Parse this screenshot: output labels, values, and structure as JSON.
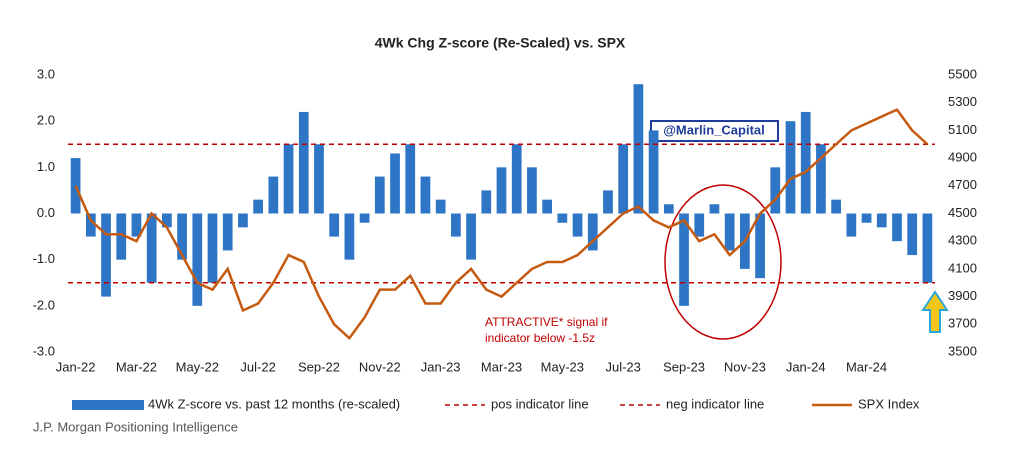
{
  "chart_data": {
    "type": "bar-line",
    "title": "4Wk Chg Z-score (Re-Scaled) vs. SPX",
    "categories": [
      "Jan-22",
      null,
      null,
      null,
      "Mar-22",
      null,
      null,
      null,
      "May-22",
      null,
      null,
      null,
      "Jul-22",
      null,
      null,
      null,
      "Sep-22",
      null,
      null,
      null,
      "Nov-22",
      null,
      null,
      null,
      "Jan-23",
      null,
      null,
      null,
      "Mar-23",
      null,
      null,
      null,
      "May-23",
      null,
      null,
      null,
      "Jul-23",
      null,
      null,
      null,
      "Sep-23",
      null,
      null,
      null,
      "Nov-23",
      null,
      null,
      null,
      "Jan-24",
      null,
      null,
      null,
      "Mar-24",
      null,
      null,
      null,
      null
    ],
    "series": [
      {
        "name": "4Wk Z-score vs. past 12 months (re-scaled)",
        "type": "bar",
        "color": "#2e75c6",
        "values": [
          1.2,
          -0.5,
          -1.8,
          -1.0,
          -0.5,
          -1.5,
          -0.3,
          -1.0,
          -2.0,
          -1.5,
          -0.8,
          -0.3,
          0.3,
          0.8,
          1.5,
          2.2,
          1.5,
          -0.5,
          -1.0,
          -0.2,
          0.8,
          1.3,
          1.5,
          0.8,
          0.3,
          -0.5,
          -1.0,
          0.5,
          1.0,
          1.5,
          1.0,
          0.3,
          -0.2,
          -0.5,
          -0.8,
          0.5,
          1.5,
          2.8,
          1.8,
          0.2,
          -2.0,
          -0.5,
          0.2,
          -0.8,
          -1.2,
          -1.4,
          1.0,
          2.0,
          2.2,
          1.5,
          0.3,
          -0.5,
          -0.2,
          -0.3,
          -0.6,
          -0.9,
          -1.5
        ]
      },
      {
        "name": "SPX Index",
        "type": "line",
        "axis": "y2",
        "color": "#c55a11",
        "values": [
          4700,
          4450,
          4350,
          4350,
          4300,
          4500,
          4400,
          4200,
          4000,
          3950,
          4100,
          3800,
          3850,
          4000,
          4200,
          4150,
          3900,
          3700,
          3600,
          3750,
          3950,
          3950,
          4050,
          3850,
          3850,
          4000,
          4100,
          3950,
          3900,
          4000,
          4100,
          4150,
          4150,
          4200,
          4300,
          4400,
          4500,
          4550,
          4450,
          4400,
          4450,
          4300,
          4350,
          4200,
          4300,
          4500,
          4600,
          4750,
          4800,
          4900,
          5000,
          5100,
          5150,
          5200,
          5250,
          5100,
          5000
        ]
      }
    ],
    "reference_lines": [
      {
        "name": "pos indicator line",
        "color": "#c00000",
        "value": 1.5
      },
      {
        "name": "neg indicator line",
        "color": "#c00000",
        "value": -1.5
      }
    ],
    "ylim": [
      -3,
      3
    ],
    "yticks": [
      {
        "value": -3,
        "label": "-3.0"
      },
      {
        "value": -2,
        "label": "-2.0"
      },
      {
        "value": -1,
        "label": "-1.0"
      },
      {
        "value": 0,
        "label": "0.0"
      },
      {
        "value": 1,
        "label": "1.0"
      },
      {
        "value": 2,
        "label": "2.0"
      },
      {
        "value": 3,
        "label": "3.0"
      }
    ],
    "y2lim": [
      3500,
      5500
    ],
    "y2ticks": [
      3500,
      3700,
      3900,
      4100,
      4300,
      4500,
      4700,
      4900,
      5100,
      5300,
      5500
    ],
    "watermark": "@Marlin_Capital",
    "annotation": [
      "ATTRACTIVE* signal if",
      "indicator below -1.5z"
    ],
    "source": "J.P. Morgan Positioning Intelligence"
  }
}
